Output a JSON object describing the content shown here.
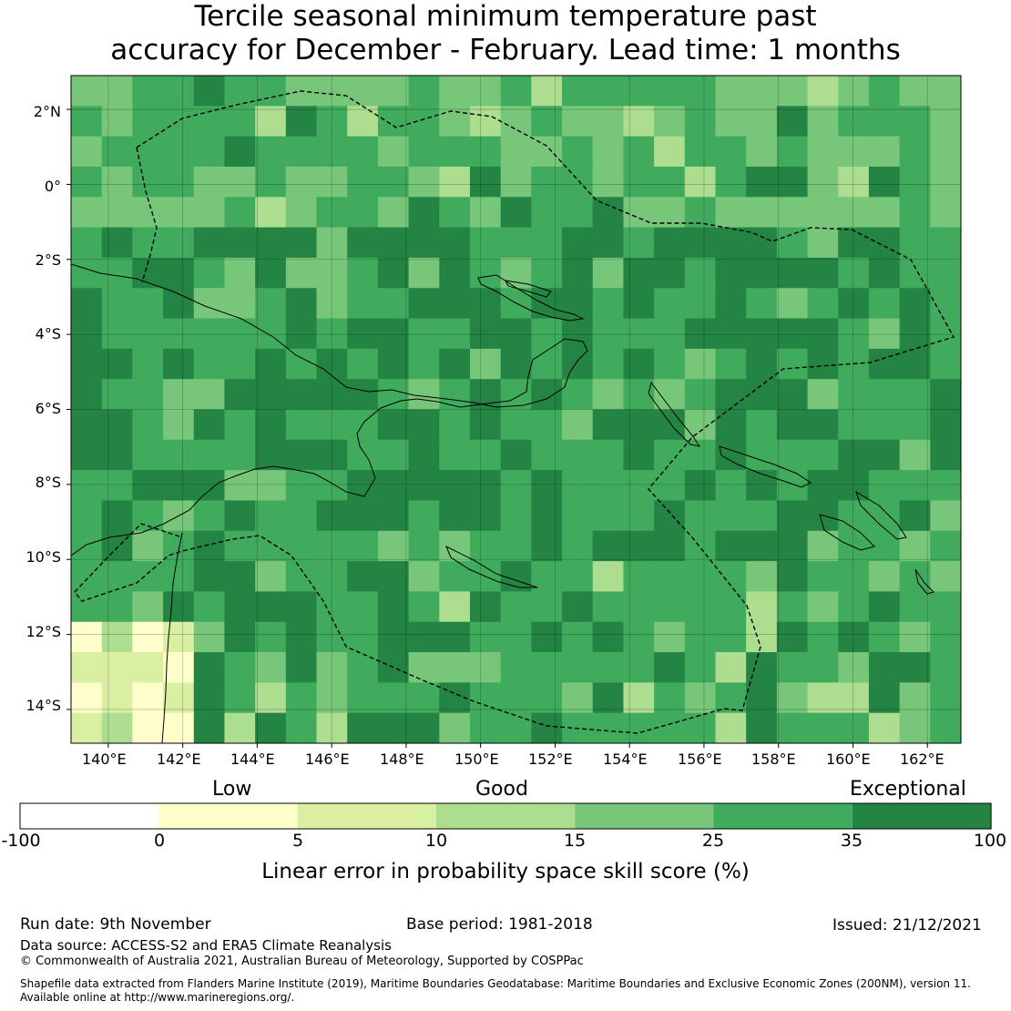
{
  "title": {
    "line1": "Tercile seasonal minimum temperature past",
    "line2": "accuracy for December - February. Lead time: 1 months"
  },
  "map": {
    "lat_labels": [
      "2°N",
      "0°",
      "2°S",
      "4°S",
      "6°S",
      "8°S",
      "10°S",
      "12°S",
      "14°S"
    ],
    "lon_labels": [
      "140°E",
      "142°E",
      "144°E",
      "146°E",
      "148°E",
      "150°E",
      "152°E",
      "154°E",
      "156°E",
      "158°E",
      "160°E",
      "162°E"
    ],
    "lat_range": [
      2.9,
      -14.9
    ],
    "lon_range": [
      139.0,
      162.9
    ]
  },
  "legend": {
    "category_labels": [
      "Low",
      "Good",
      "Exceptional"
    ],
    "tick_labels": [
      "-100",
      "0",
      "5",
      "10",
      "15",
      "25",
      "35",
      "100"
    ],
    "colors": [
      "#ffffff",
      "#ffffcc",
      "#d9f0a3",
      "#addd8e",
      "#78c679",
      "#41ab5d",
      "#238443"
    ],
    "title": "Linear error in probability space skill score (%)"
  },
  "footer": {
    "run_date": "Run date: 9th November",
    "base_period": "Base period: 1981-2018",
    "issued": "Issued: 21/12/2021",
    "data_source": "Data source: ACCESS-S2 and ERA5 Climate Reanalysis",
    "copyright": "© Commonwealth of Australia 2021, Australian Bureau of Meteorology, Supported by COSPPac",
    "shapefile_line1": "Shapefile data extracted from Flanders Marine Institute (2019), Maritime Boundaries Geodatabase: Maritime Boundaries and Exclusive Economic Zones (200NM), version 11.",
    "shapefile_line2": "Available online at http://www.marineregions.org/."
  }
}
